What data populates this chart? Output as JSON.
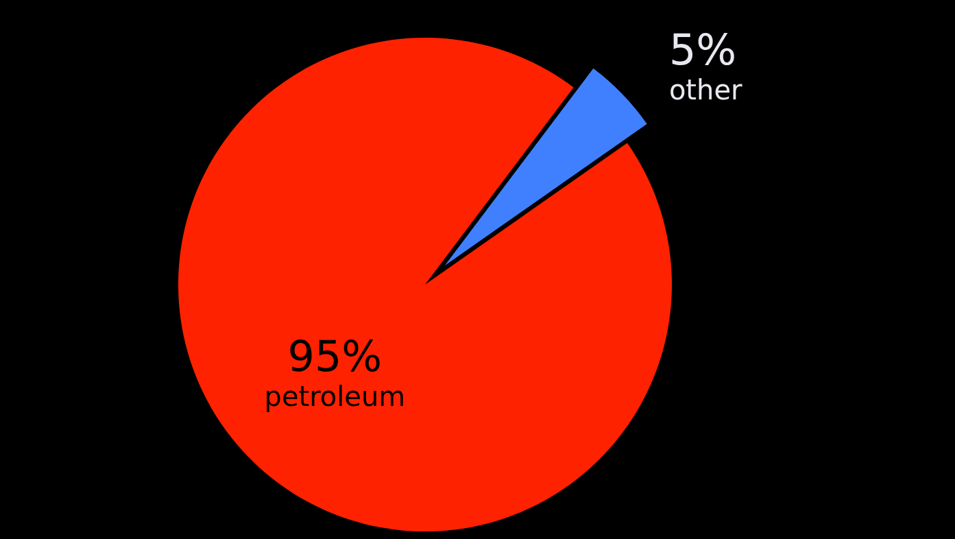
{
  "chart_data": {
    "type": "pie",
    "categories": [
      "petroleum",
      "other"
    ],
    "values": [
      95,
      5
    ],
    "colors": [
      "#ff2200",
      "#4080ff"
    ],
    "value_labels": [
      "95%",
      "5%"
    ]
  }
}
